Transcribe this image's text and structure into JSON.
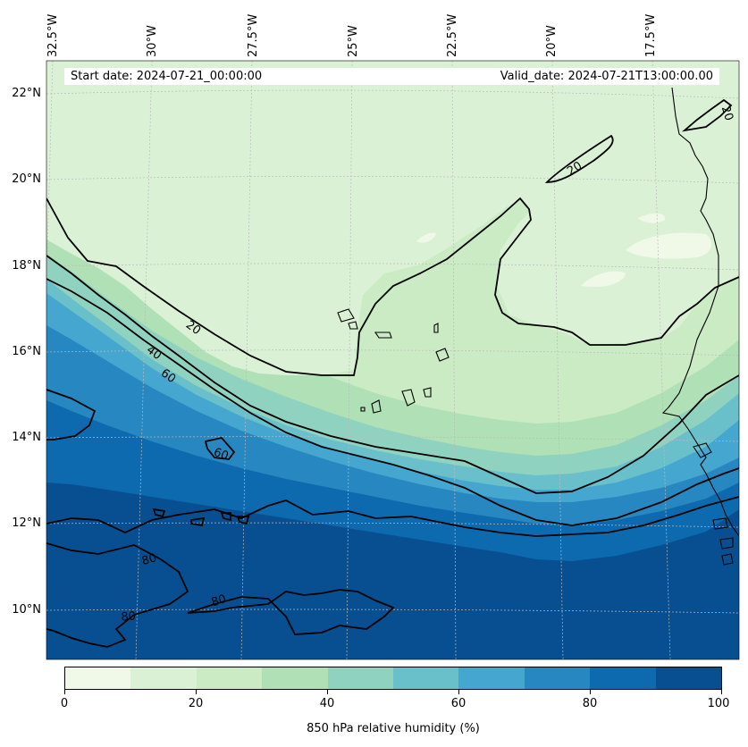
{
  "map": {
    "start_date": "Start date: 2024-07-21_00:00:00",
    "valid_date": "Valid_date: 2024-07-21T13:00:00.00",
    "longitude_labels": [
      "32.5°W",
      "30°W",
      "27.5°W",
      "25°W",
      "22.5°W",
      "20°W",
      "17.5°W"
    ],
    "latitude_labels": [
      "22°N",
      "20°N",
      "18°N",
      "16°N",
      "14°N",
      "12°N",
      "10°N"
    ],
    "contour_labels": [
      "20",
      "20",
      "20",
      "40",
      "60",
      "60",
      "80",
      "80",
      "80"
    ],
    "colorbar": {
      "label": "850 hPa relative humidity (%)",
      "tick_labels": [
        "0",
        "20",
        "40",
        "60",
        "80",
        "100"
      ],
      "colors": [
        "#f0f9e8",
        "#dbf1d6",
        "#cbebc5",
        "#b0e0b5",
        "#8fd2c0",
        "#69c0cb",
        "#45a7d0",
        "#2787c0",
        "#0e6aae",
        "#084f92"
      ]
    },
    "colors": {
      "coastline": "#000000",
      "contour": "#000000",
      "gridline": "#bbbbbb"
    }
  }
}
